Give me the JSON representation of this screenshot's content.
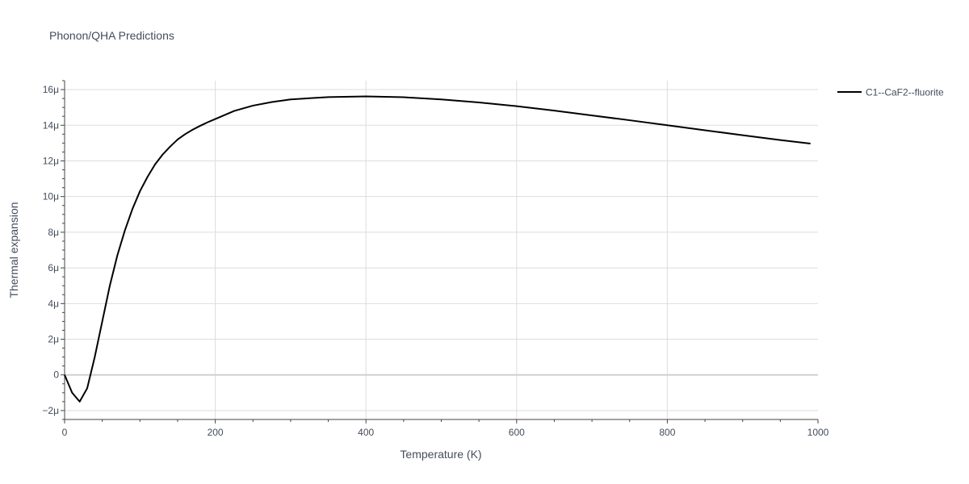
{
  "chart_data": {
    "type": "line",
    "title": "Phonon/QHA Predictions",
    "xlabel": "Temperature (K)",
    "ylabel": "Thermal expansion",
    "xlim": [
      0,
      1000
    ],
    "ylim": [
      -2.5e-06,
      1.65e-05
    ],
    "x_ticks": [
      0,
      200,
      400,
      600,
      800,
      1000
    ],
    "x_tick_labels": [
      "0",
      "200",
      "400",
      "600",
      "800",
      "1000"
    ],
    "y_ticks": [
      -2e-06,
      0,
      2e-06,
      4e-06,
      6e-06,
      8e-06,
      1e-05,
      1.2e-05,
      1.4e-05,
      1.6e-05
    ],
    "y_tick_labels": [
      "−2μ",
      "0",
      "2μ",
      "4μ",
      "6μ",
      "8μ",
      "10μ",
      "12μ",
      "14μ",
      "16μ"
    ],
    "grid": true,
    "legend_position": "top-right",
    "line_color": "#000000",
    "series": [
      {
        "name": "C1--CaF2--fluorite",
        "x": [
          0,
          10,
          20,
          30,
          40,
          50,
          60,
          70,
          80,
          90,
          100,
          110,
          120,
          130,
          140,
          150,
          160,
          170,
          180,
          190,
          200,
          225,
          250,
          275,
          300,
          350,
          400,
          450,
          500,
          550,
          600,
          650,
          700,
          750,
          800,
          850,
          900,
          950,
          990
        ],
        "y": [
          0,
          -1e-06,
          -1.5e-06,
          -7.5e-07,
          1e-06,
          3e-06,
          5e-06,
          6.7e-06,
          8.1e-06,
          9.3e-06,
          1.03e-05,
          1.11e-05,
          1.18e-05,
          1.235e-05,
          1.28e-05,
          1.32e-05,
          1.35e-05,
          1.375e-05,
          1.397e-05,
          1.417e-05,
          1.435e-05,
          1.48e-05,
          1.51e-05,
          1.53e-05,
          1.545e-05,
          1.558e-05,
          1.562e-05,
          1.557e-05,
          1.545e-05,
          1.528e-05,
          1.507e-05,
          1.482e-05,
          1.455e-05,
          1.428e-05,
          1.4e-05,
          1.372e-05,
          1.344e-05,
          1.317e-05,
          1.297e-05
        ]
      }
    ]
  }
}
